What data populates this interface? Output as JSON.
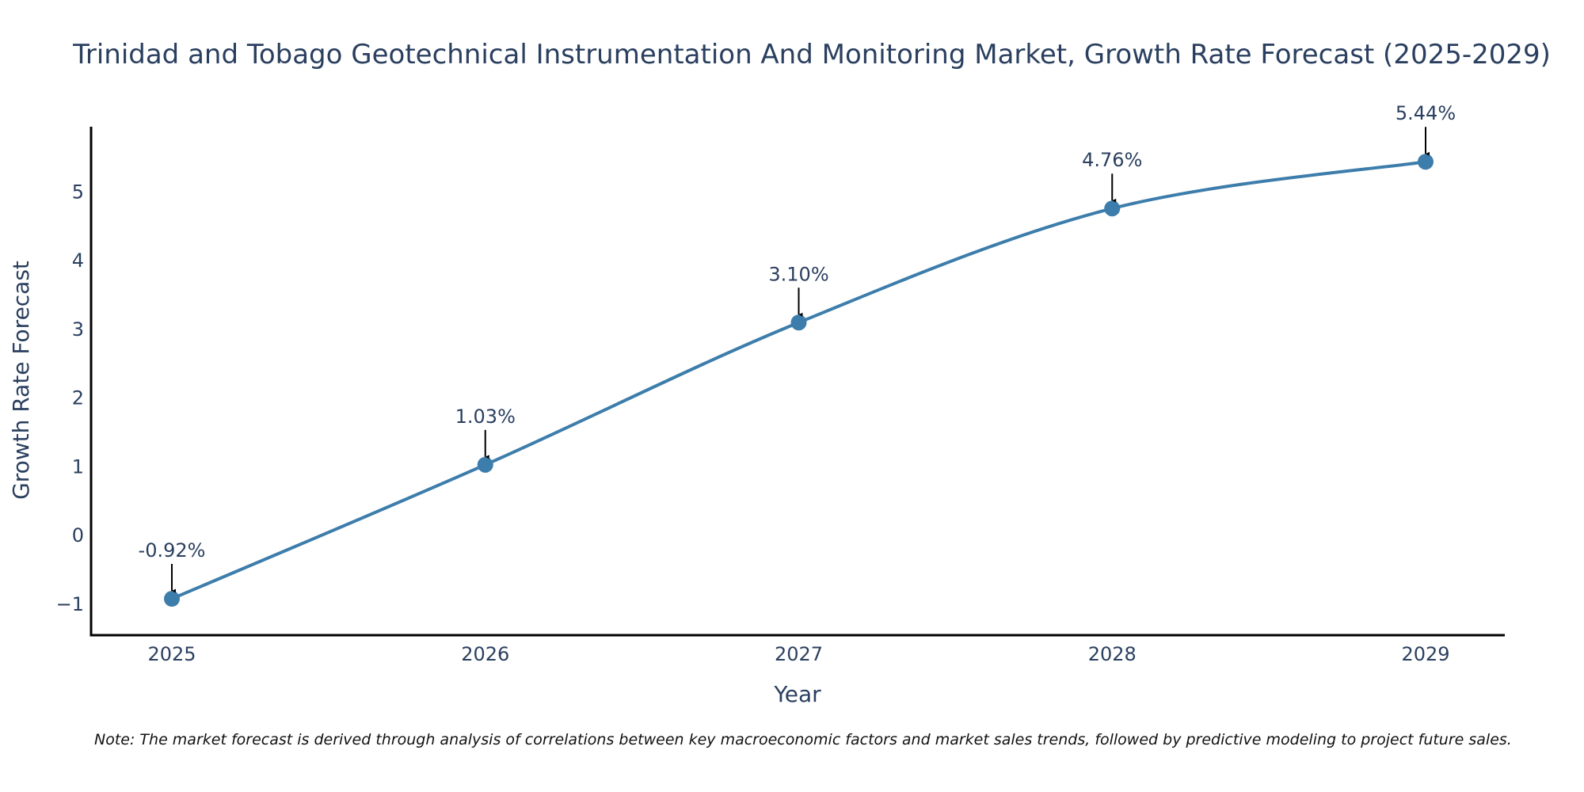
{
  "chart_data": {
    "type": "line",
    "title": "Trinidad and Tobago Geotechnical Instrumentation And Monitoring Market, Growth Rate Forecast (2025-2029)",
    "xlabel": "Year",
    "ylabel": "Growth Rate Forecast",
    "categories": [
      "2025",
      "2026",
      "2027",
      "2028",
      "2029"
    ],
    "values": [
      -0.92,
      1.03,
      3.1,
      4.76,
      5.44
    ],
    "data_labels": [
      "-0.92%",
      "1.03%",
      "3.10%",
      "4.76%",
      "5.44%"
    ],
    "yticks": [
      -1,
      0,
      1,
      2,
      3,
      4,
      5
    ],
    "ytick_labels": [
      "−1",
      "0",
      "1",
      "2",
      "3",
      "4",
      "5"
    ],
    "ylim": [
      -1.45,
      5.95
    ],
    "line_shape": "spline",
    "grid": false,
    "colors": {
      "line": "#3d7dab",
      "marker": "#3d7dab",
      "arrow": "#000000",
      "text": "#2a3f5f"
    },
    "note": "Note: The market forecast is derived through analysis of correlations between key macroeconomic factors and market sales trends, followed by predictive modeling to project future sales."
  }
}
